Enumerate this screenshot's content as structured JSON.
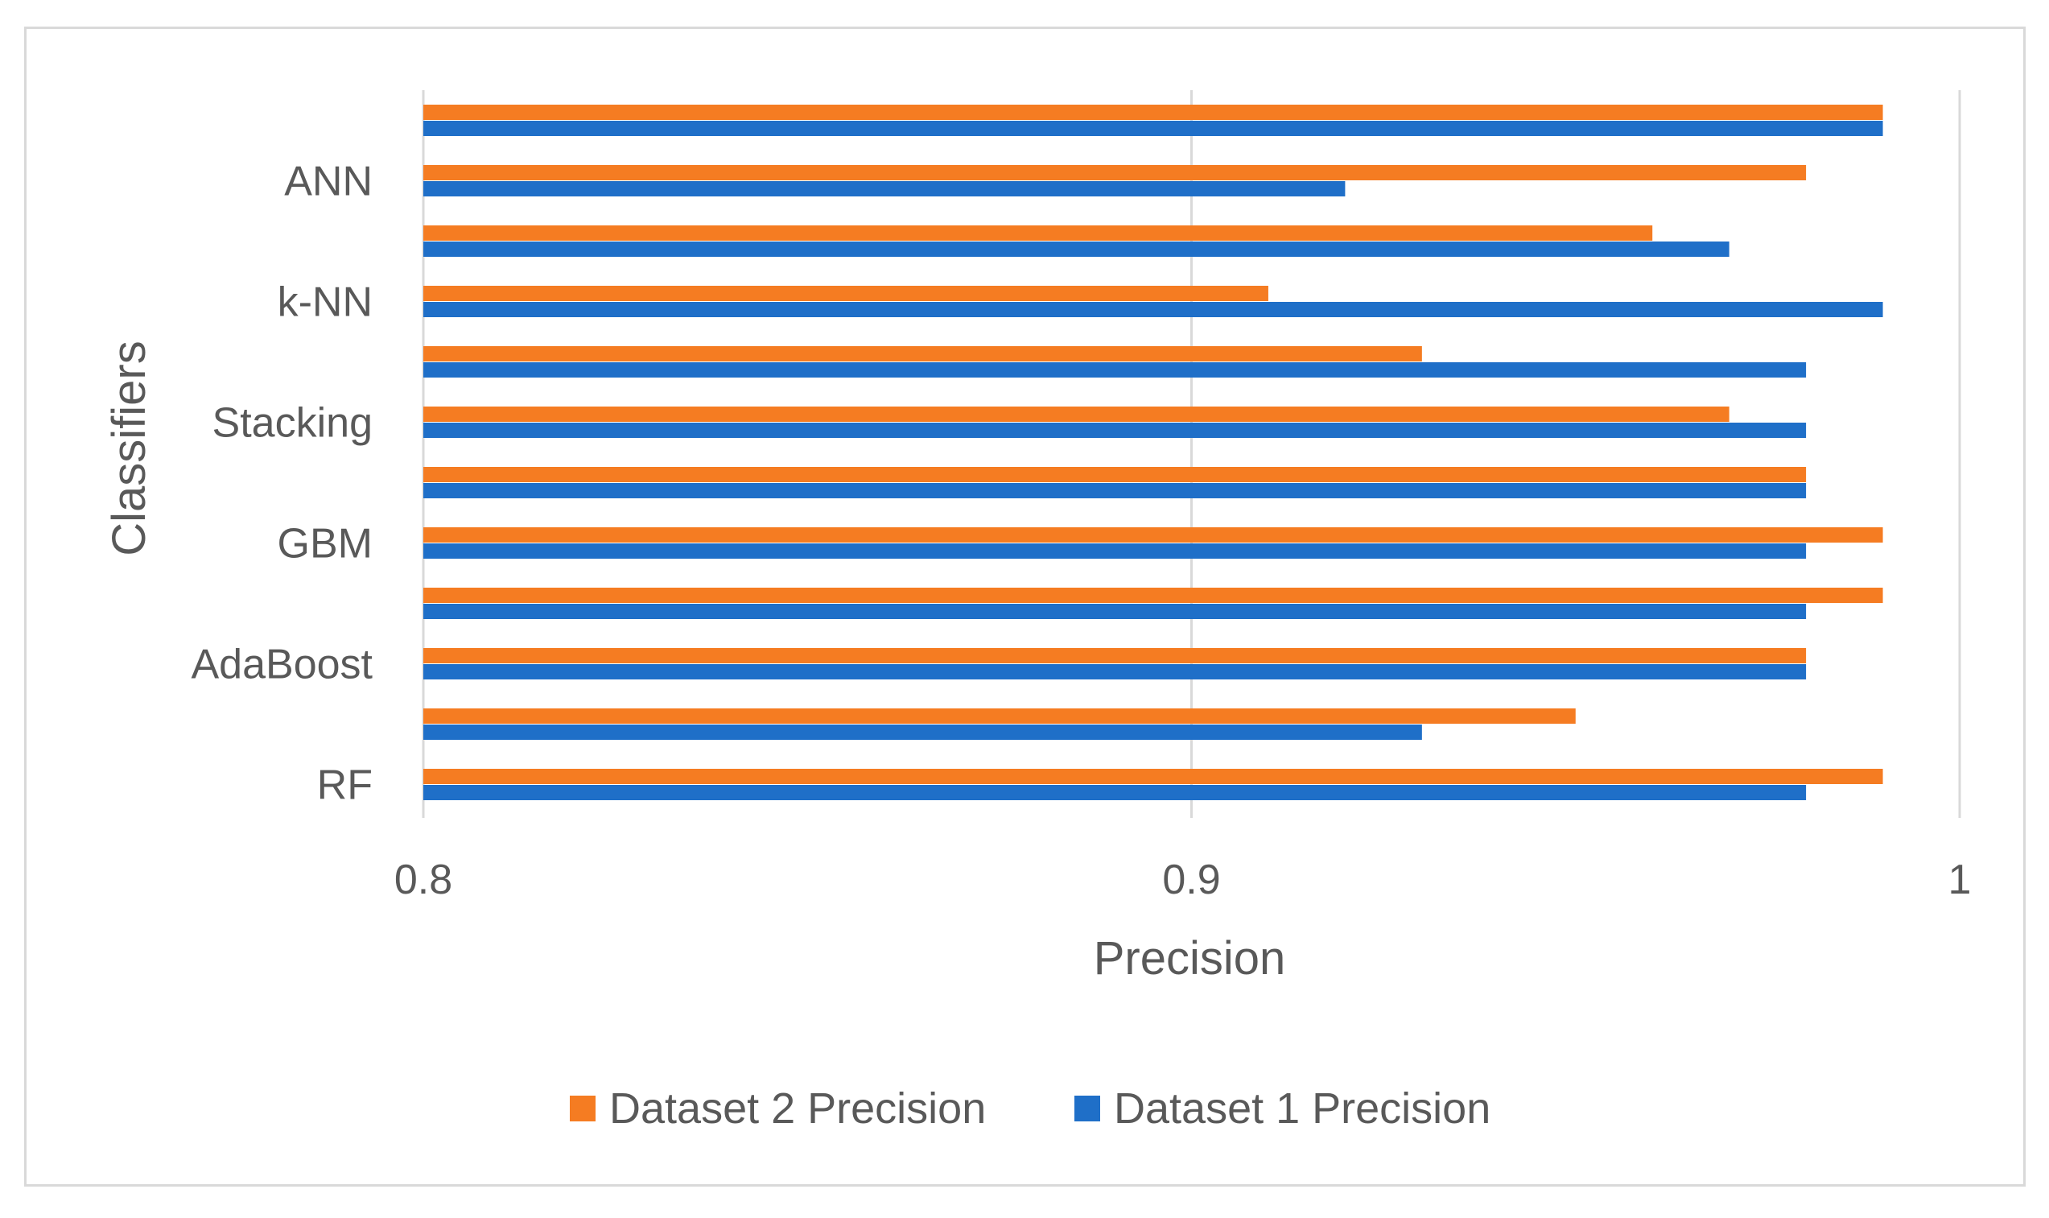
{
  "chart_data": {
    "type": "bar",
    "orientation": "horizontal",
    "categories": [
      "RF",
      "",
      "AdaBoost",
      "",
      "GBM",
      "",
      "Stacking",
      "",
      "k-NN",
      "",
      "ANN",
      ""
    ],
    "series": [
      {
        "name": "Dataset 2 Precision",
        "color": "#f57c22",
        "values": [
          0.99,
          0.95,
          0.98,
          0.99,
          0.99,
          0.98,
          0.97,
          0.93,
          0.91,
          0.96,
          0.98,
          0.99
        ]
      },
      {
        "name": "Dataset 1 Precision",
        "color": "#1f6fc8",
        "values": [
          0.98,
          0.93,
          0.98,
          0.98,
          0.98,
          0.98,
          0.98,
          0.98,
          0.99,
          0.97,
          0.92,
          0.99
        ]
      }
    ],
    "xlim": [
      0.8,
      1.0
    ],
    "xticks": [
      "0.8",
      "0.9",
      "1"
    ],
    "xlabel": "Precision",
    "ylabel": "Classifiers",
    "grid": "vertical",
    "legend": "bottom"
  }
}
